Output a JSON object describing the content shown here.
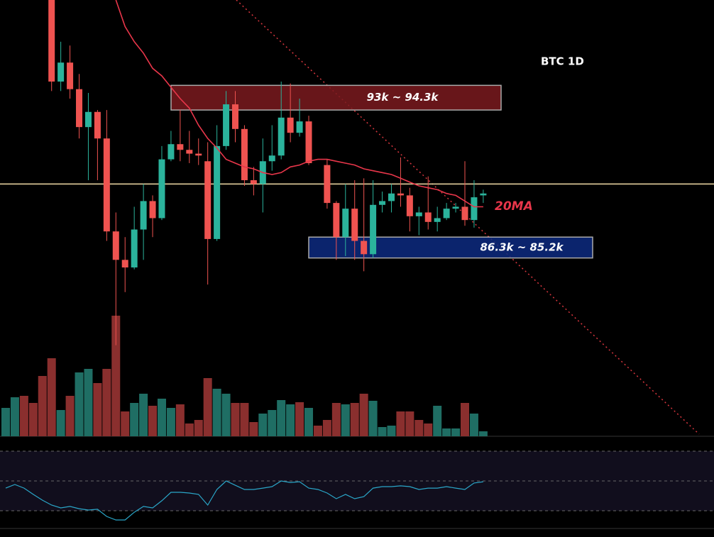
{
  "chart_data": {
    "type": "candlestick",
    "title": "BTC 1D",
    "ylim": [
      75.8,
      98.8
    ],
    "up_color": "#2bb39c",
    "down_color": "#ef5350",
    "open": [
      null,
      null,
      null,
      null,
      null,
      98.8,
      94.5,
      95.5,
      94.1,
      92.1,
      92.9,
      91.5,
      86.6,
      85.1,
      84.7,
      86.7,
      88.2,
      87.3,
      90.4,
      91.2,
      90.9,
      90.7,
      90.3,
      86.2,
      91.1,
      93.3,
      92.0,
      89.3,
      89.1,
      90.3,
      90.6,
      92.6,
      91.8,
      92.4,
      null,
      90.1,
      88.1,
      86.3,
      87.8,
      86.1,
      85.4,
      88.0,
      88.2,
      88.6,
      88.5,
      87.4,
      87.6,
      87.1,
      87.3,
      87.8,
      87.9,
      87.2,
      88.5
    ],
    "high": [
      null,
      null,
      null,
      null,
      null,
      98.8,
      96.6,
      96.4,
      94.9,
      93.9,
      93.0,
      93.0,
      87.6,
      86.3,
      87.9,
      89.1,
      88.5,
      91.1,
      91.9,
      93.0,
      91.9,
      91.5,
      91.3,
      92.2,
      94.0,
      94.0,
      92.2,
      90.0,
      91.5,
      92.2,
      94.5,
      94.4,
      93.6,
      92.7,
      null,
      90.4,
      88.2,
      89.1,
      89.3,
      89.4,
      89.3,
      88.7,
      89.1,
      90.5,
      88.9,
      87.9,
      89.5,
      87.9,
      88.1,
      88.1,
      90.3,
      89.3,
      88.8
    ],
    "low": [
      null,
      null,
      null,
      null,
      null,
      94.0,
      94.0,
      93.6,
      91.5,
      89.3,
      89.3,
      86.1,
      80.6,
      83.4,
      84.6,
      85.1,
      86.3,
      87.2,
      90.3,
      90.3,
      90.2,
      90.1,
      83.8,
      86.1,
      90.9,
      91.3,
      89.0,
      88.5,
      87.6,
      89.8,
      90.4,
      91.3,
      91.6,
      90.1,
      null,
      87.8,
      85.1,
      85.3,
      85.1,
      84.5,
      85.2,
      87.6,
      87.6,
      87.9,
      86.6,
      86.4,
      86.7,
      86.6,
      87.2,
      87.6,
      86.9,
      86.8,
      88.1
    ],
    "close": [
      null,
      null,
      null,
      null,
      null,
      94.5,
      95.5,
      94.1,
      92.1,
      92.9,
      91.5,
      86.6,
      85.1,
      84.7,
      86.7,
      88.2,
      87.3,
      90.4,
      91.2,
      90.9,
      90.7,
      90.6,
      86.2,
      91.1,
      93.3,
      92.0,
      89.3,
      89.1,
      90.3,
      90.6,
      92.6,
      91.8,
      92.4,
      90.2,
      null,
      88.1,
      86.3,
      87.8,
      86.1,
      85.4,
      88.0,
      88.2,
      88.6,
      88.5,
      87.4,
      87.6,
      87.1,
      87.3,
      87.8,
      87.9,
      87.2,
      88.4,
      88.6
    ],
    "ma": {
      "name": "20MA",
      "color": "#e8364a",
      "values": [
        null,
        null,
        null,
        null,
        null,
        null,
        null,
        null,
        null,
        null,
        null,
        null,
        98.8,
        97.4,
        96.6,
        96.0,
        95.2,
        94.8,
        94.2,
        93.6,
        93.1,
        92.2,
        91.5,
        91.0,
        90.4,
        90.2,
        90.0,
        89.9,
        89.7,
        89.6,
        89.7,
        90.0,
        90.1,
        90.3,
        90.4,
        90.4,
        90.3,
        90.2,
        90.1,
        89.9,
        89.8,
        89.7,
        89.6,
        89.4,
        89.2,
        89.0,
        88.9,
        88.8,
        88.6,
        88.5,
        88.2,
        87.9,
        87.9
      ]
    },
    "hline": 89.1,
    "zones": [
      {
        "label": "93k ~ 94.3k",
        "low": 93,
        "high": 94.3,
        "color": "#7a1a1f"
      },
      {
        "label": "86.3k ~ 85.2k",
        "low": 85.2,
        "high": 86.3,
        "color": "#0d2a80"
      }
    ],
    "volume": {
      "vlim": [
        0,
        170
      ],
      "up_color": "#1f6e64",
      "down_color": "#8a2f2e",
      "values": [
        40,
        55,
        57,
        47,
        85,
        110,
        37,
        57,
        90,
        95,
        75,
        95,
        170,
        35,
        47,
        60,
        43,
        53,
        40,
        45,
        18,
        23,
        82,
        67,
        60,
        47,
        47,
        20,
        32,
        37,
        51,
        45,
        48,
        40,
        15,
        23,
        47,
        45,
        47,
        60,
        50,
        13,
        15,
        35,
        35,
        23,
        18,
        43,
        11,
        11,
        47,
        32,
        7
      ],
      "up": [
        true,
        true,
        false,
        false,
        false,
        false,
        true,
        false,
        true,
        true,
        false,
        false,
        false,
        false,
        true,
        true,
        false,
        true,
        true,
        false,
        false,
        false,
        false,
        true,
        true,
        false,
        false,
        false,
        true,
        true,
        true,
        true,
        false,
        true,
        false,
        false,
        false,
        true,
        false,
        false,
        true,
        true,
        true,
        false,
        false,
        false,
        false,
        true,
        true,
        true,
        false,
        true,
        true
      ]
    },
    "rsi": {
      "ylim": [
        18.1,
        80
      ],
      "levels": [
        70,
        50,
        30
      ],
      "color": "#2aa6c8",
      "values": [
        45.2,
        47.6,
        45.2,
        41.0,
        37.1,
        33.8,
        31.9,
        32.9,
        31.4,
        30.5,
        31.0,
        26.2,
        23.8,
        23.8,
        29.0,
        32.9,
        31.9,
        36.7,
        42.4,
        42.4,
        41.9,
        41.0,
        33.8,
        44.3,
        50.0,
        47.1,
        44.3,
        44.3,
        45.2,
        46.2,
        50.0,
        49.0,
        49.5,
        45.2,
        44.3,
        41.9,
        38.1,
        41.0,
        38.1,
        39.5,
        45.2,
        46.2,
        46.2,
        46.7,
        46.2,
        44.3,
        45.2,
        45.2,
        46.2,
        45.2,
        44.3,
        48.6,
        49.5
      ]
    }
  }
}
